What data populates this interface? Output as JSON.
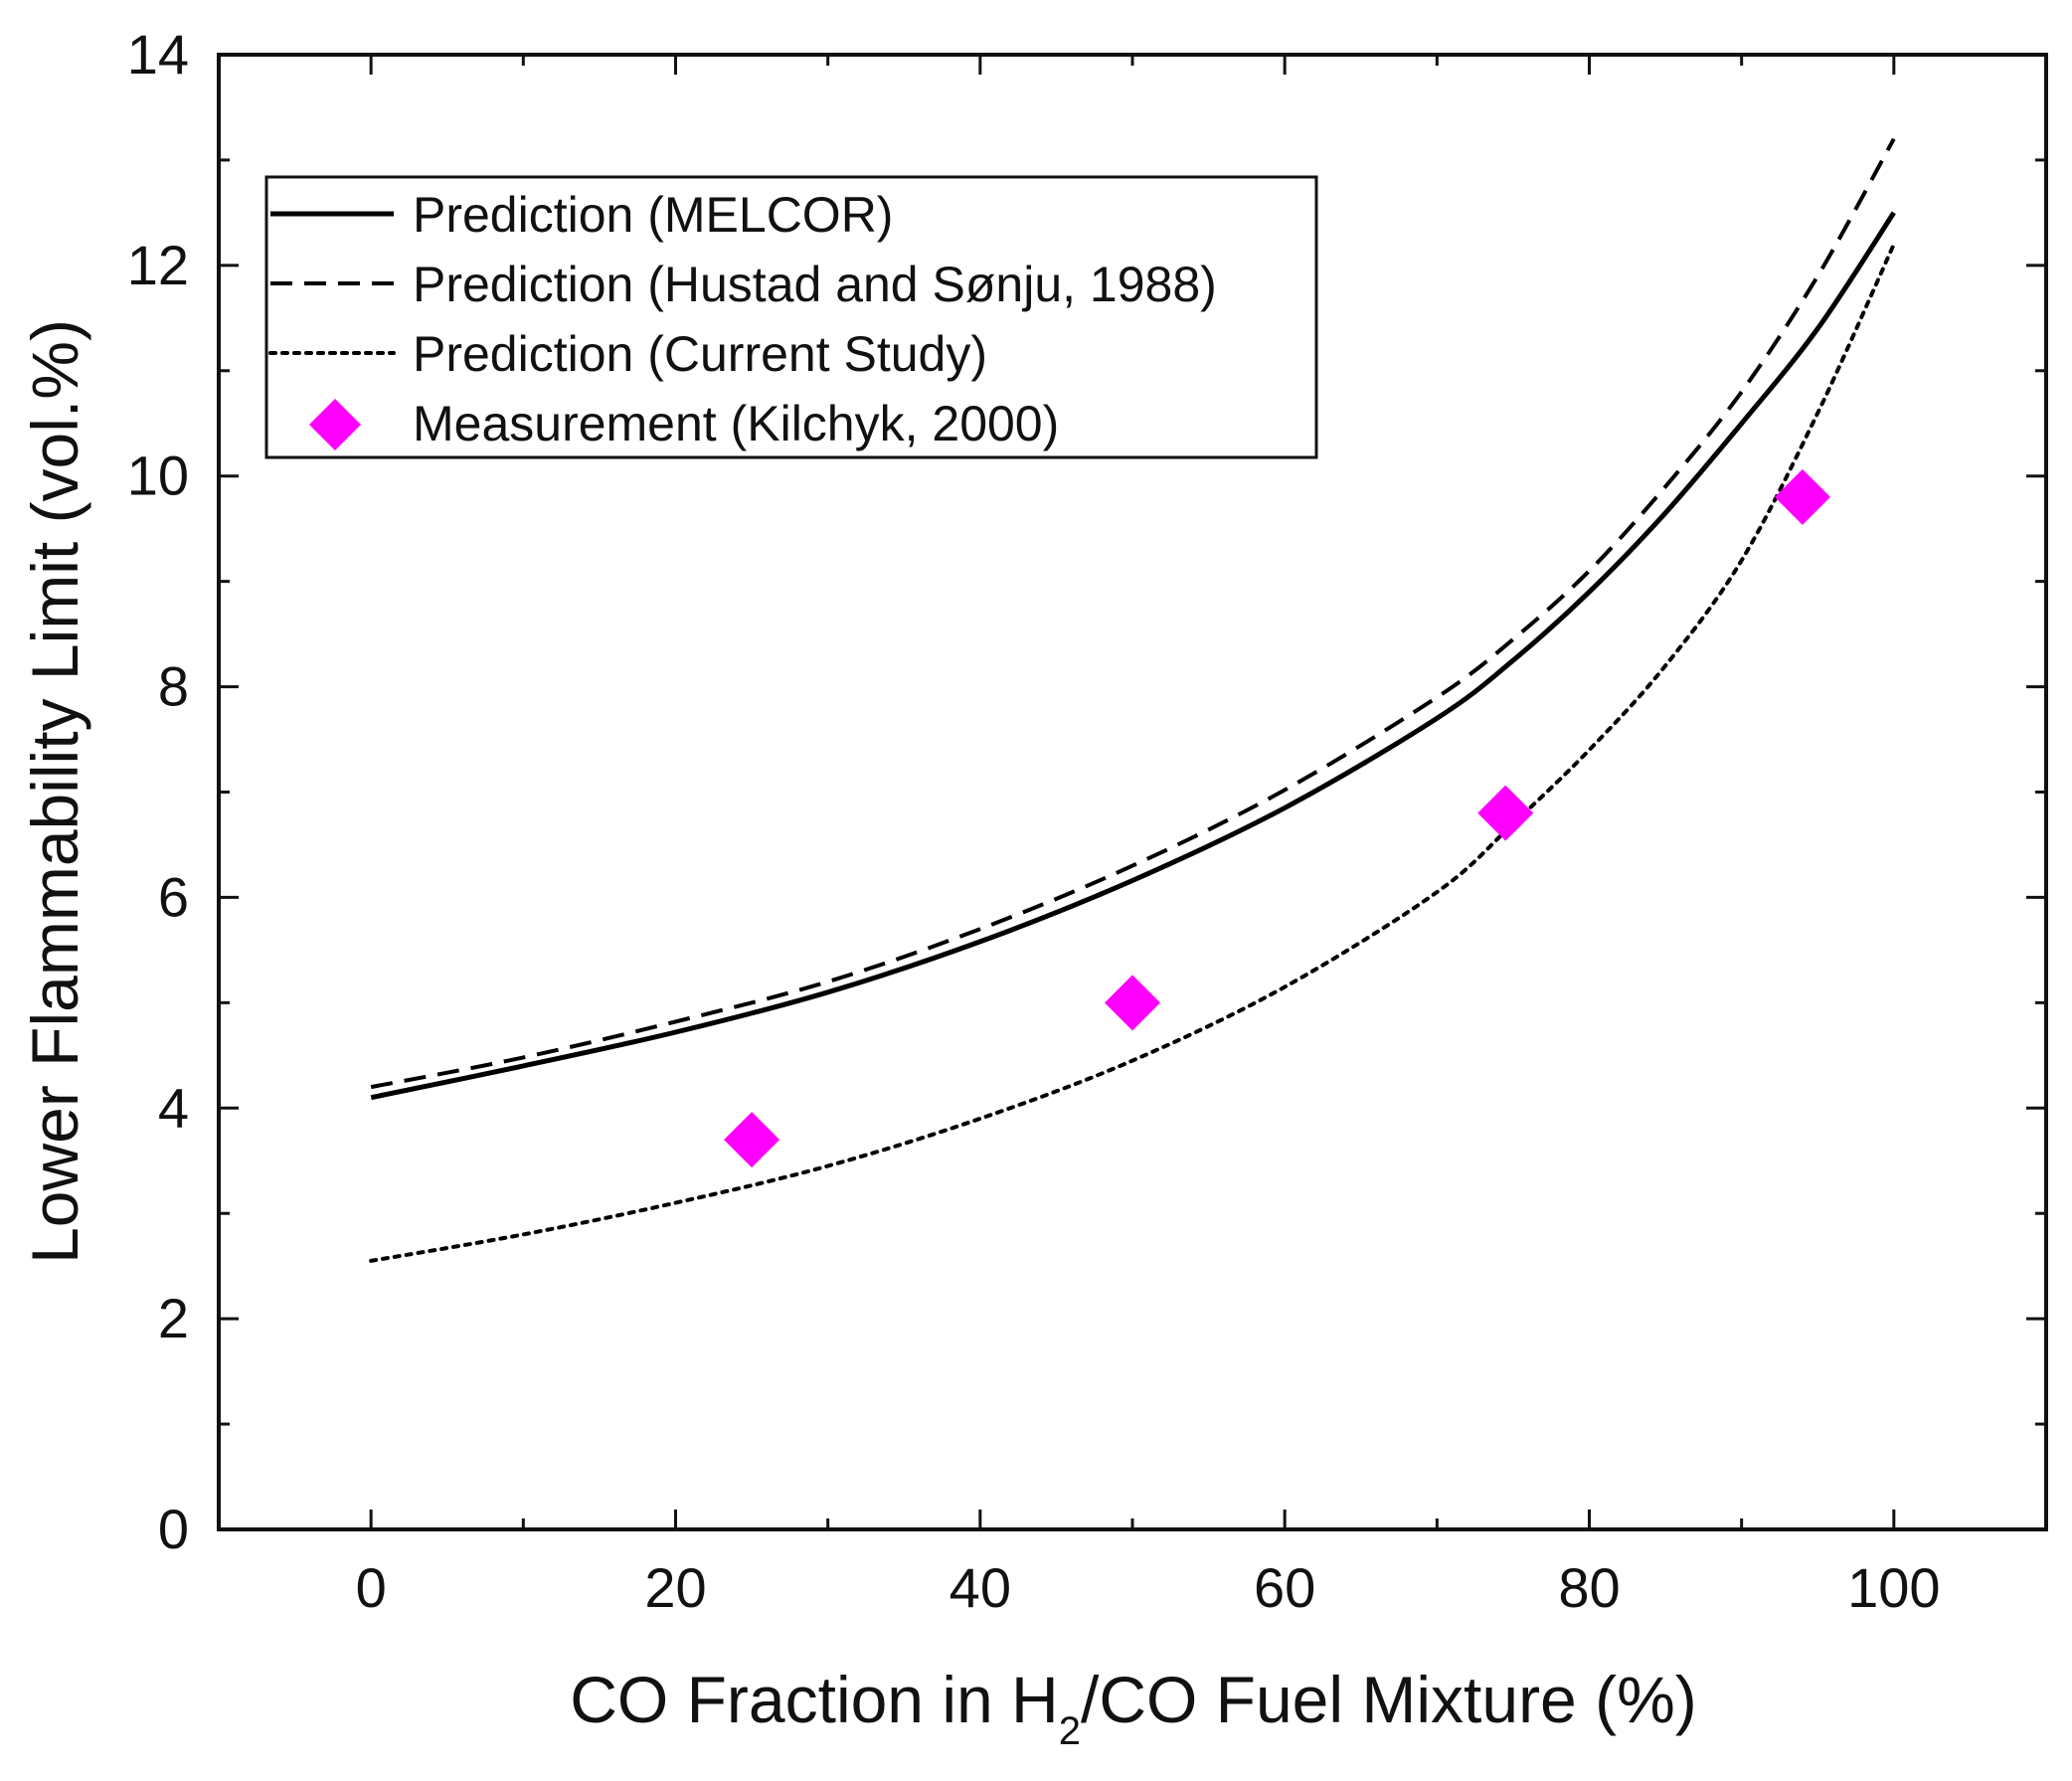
{
  "chart_data": {
    "type": "line",
    "xlabel": {
      "prefix": "CO Fraction in H",
      "subscript": "2",
      "suffix": "/CO Fuel Mixture (%)"
    },
    "ylabel": "Lower Flammability Limit (vol.%)",
    "xlim": [
      -10,
      110
    ],
    "ylim": [
      0,
      14
    ],
    "xticks": [
      0,
      20,
      40,
      60,
      80,
      100
    ],
    "yticks": [
      0,
      2,
      4,
      6,
      8,
      10,
      12,
      14
    ],
    "legend_position": "upper-left",
    "series": [
      {
        "name": "Prediction (MELCOR)",
        "style": "solid",
        "color": "#000000",
        "x": [
          0,
          10,
          20,
          30,
          40,
          50,
          60,
          70,
          75,
          80,
          85,
          90,
          95,
          100
        ],
        "y": [
          4.1,
          4.4,
          4.72,
          5.1,
          5.58,
          6.16,
          6.85,
          7.7,
          8.25,
          8.9,
          9.65,
          10.5,
          11.4,
          12.5
        ]
      },
      {
        "name": "Prediction (Hustad and Sønju, 1988)",
        "style": "dashed",
        "color": "#000000",
        "x": [
          0,
          10,
          20,
          30,
          40,
          50,
          60,
          70,
          75,
          80,
          85,
          90,
          95,
          100
        ],
        "y": [
          4.2,
          4.48,
          4.82,
          5.2,
          5.7,
          6.3,
          7.02,
          7.9,
          8.45,
          9.1,
          9.9,
          10.8,
          11.9,
          13.2
        ]
      },
      {
        "name": "Prediction (Current Study)",
        "style": "dotted",
        "color": "#000000",
        "x": [
          0,
          10,
          20,
          30,
          40,
          50,
          60,
          70,
          75,
          80,
          85,
          90,
          95,
          100
        ],
        "y": [
          2.55,
          2.8,
          3.1,
          3.45,
          3.9,
          4.45,
          5.15,
          6.05,
          6.7,
          7.4,
          8.2,
          9.2,
          10.6,
          12.2
        ]
      },
      {
        "name": "Measurement (Kilchyk, 2000)",
        "style": "marker-diamond",
        "color": "#ff00ff",
        "x": [
          25,
          50,
          74.5,
          94
        ],
        "y": [
          3.7,
          5.0,
          6.8,
          9.8
        ]
      }
    ]
  }
}
